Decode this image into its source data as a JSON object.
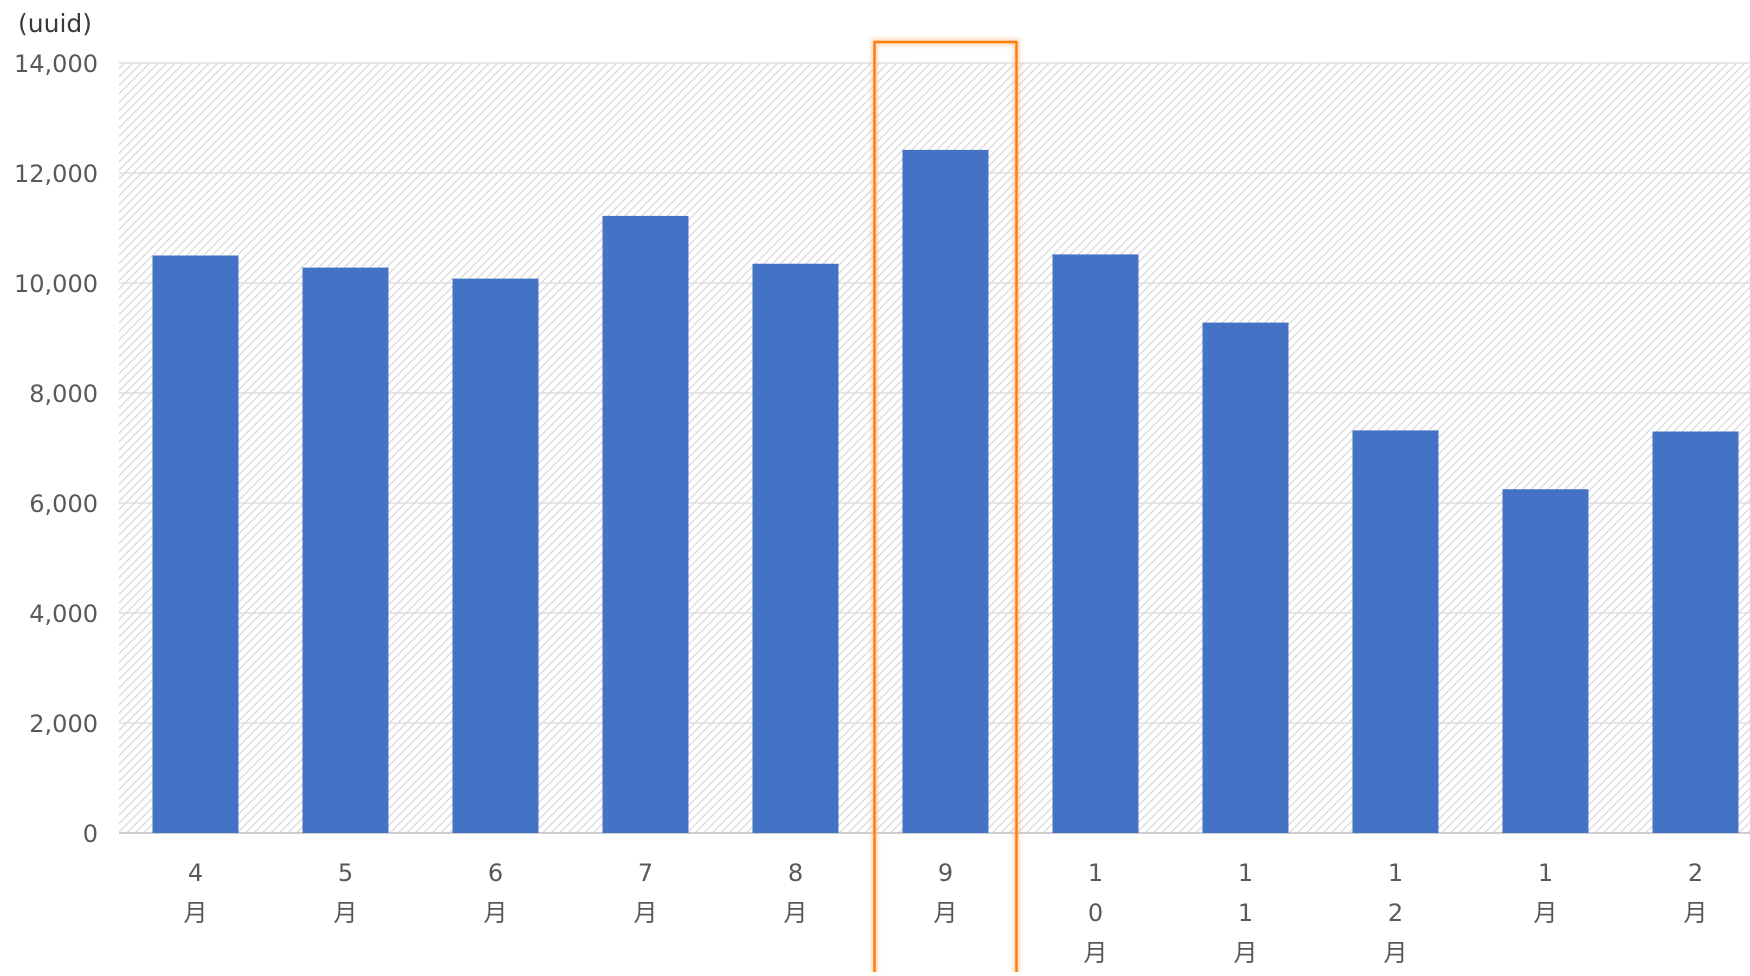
{
  "chart_data": {
    "type": "bar",
    "ylabel": "(uuid)",
    "ylim": [
      0,
      14000
    ],
    "yticks": [
      0,
      2000,
      4000,
      6000,
      8000,
      10000,
      12000,
      14000
    ],
    "ytick_labels": [
      "0",
      "2,000",
      "4,000",
      "6,000",
      "8,000",
      "10,000",
      "12,000",
      "14,000"
    ],
    "categories": [
      "4月",
      "5月",
      "6月",
      "7月",
      "8月",
      "9月",
      "10月",
      "11月",
      "12月",
      "1月",
      "2月"
    ],
    "values": [
      10500,
      10280,
      10080,
      11220,
      10350,
      12420,
      10520,
      9280,
      7320,
      6250,
      7300
    ],
    "highlighted_category": "9月",
    "grid": true,
    "colors": {
      "bar": "#4472c4",
      "highlight_box": "#ff7f0e",
      "gridline": "#d9d9d9",
      "plot_hatch": "#d4d4d4",
      "axis_text": "#595959"
    }
  }
}
